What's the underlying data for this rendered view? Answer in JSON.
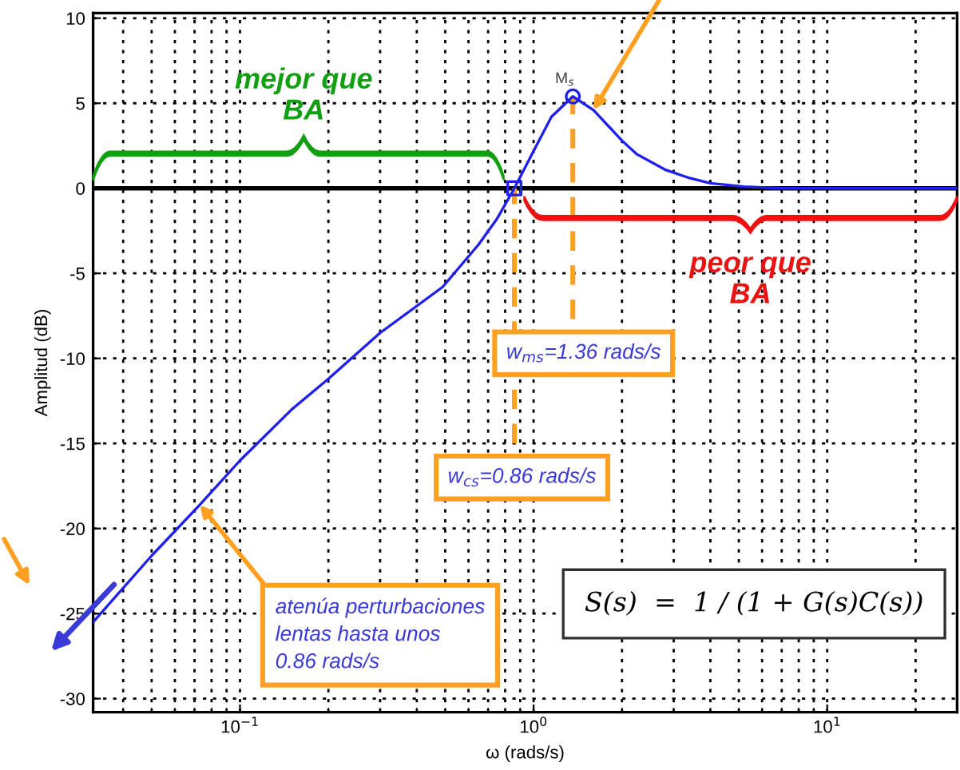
{
  "chart_data": {
    "type": "line",
    "xlabel": "ω (rads/s)",
    "ylabel": "Amplitud (dB)",
    "x": [
      0.0316,
      0.05,
      0.073,
      0.1,
      0.15,
      0.2,
      0.3,
      0.49,
      0.65,
      0.75,
      0.86,
      1.0,
      1.15,
      1.36,
      1.6,
      2.0,
      2.25,
      2.8,
      3.4,
      4.0,
      5.2,
      7.0,
      27.7
    ],
    "series": [
      {
        "color": "#2020ee",
        "values": [
          -25.5,
          -21.6,
          -18.6,
          -16.0,
          -13.0,
          -11.2,
          -8.5,
          -5.8,
          -3.3,
          -1.8,
          0.0,
          2.2,
          4.2,
          5.4,
          4.6,
          2.8,
          2.0,
          1.1,
          0.6,
          0.3,
          0.1,
          0.0,
          0.0
        ]
      },
      {
        "type": "scatter",
        "color": "#2020ee",
        "marker": "square",
        "x": [
          0.86
        ],
        "values": [
          0.0
        ]
      },
      {
        "type": "scatter",
        "color": "#2020ee",
        "marker": "circle",
        "x": [
          1.36
        ],
        "values": [
          5.4
        ]
      }
    ],
    "xlim": [
      0.0316,
      27.7
    ],
    "ylim": [
      -30.8,
      10.3
    ],
    "log": "x",
    "xticks": [
      {
        "value": 0.1,
        "label": "10$^{−1}$"
      },
      {
        "value": 1,
        "label": "10$^{0}$"
      },
      {
        "value": 10,
        "label": "10$^{1}$"
      }
    ],
    "yticks": [
      -30,
      -25,
      -20,
      -15,
      -10,
      -5,
      0,
      5,
      10
    ],
    "grid": true,
    "legend": false,
    "ref_lines": [
      {
        "axis": "y",
        "value": 0,
        "color": "#000000",
        "line_style": "solid"
      },
      {
        "axis": "x",
        "value": 0.86,
        "color": "#ffa020",
        "line_style": "dashed"
      },
      {
        "axis": "x",
        "value": 1.36,
        "color": "#ffa020",
        "line_style": "dashed"
      }
    ],
    "annotations": [
      {
        "text": "M$_{s}$",
        "x": 1.36,
        "y": 5.4
      },
      {
        "text": "w$_{ms}$=1.36 rads/s",
        "x": 1.36,
        "y": -9.7
      },
      {
        "text": "w$_{cs}$=0.86 rads/s",
        "x": 0.86,
        "y": -17.0
      },
      {
        "text": "atenúa perturbaciones\nlentas hasta unos\n0.86 rads/s",
        "x": 0.073,
        "y": -18.6
      },
      "mejor que\nBA",
      "peor que\nBA",
      "S(s)  =  1 / (1 + G(s)C(s))"
    ]
  }
}
